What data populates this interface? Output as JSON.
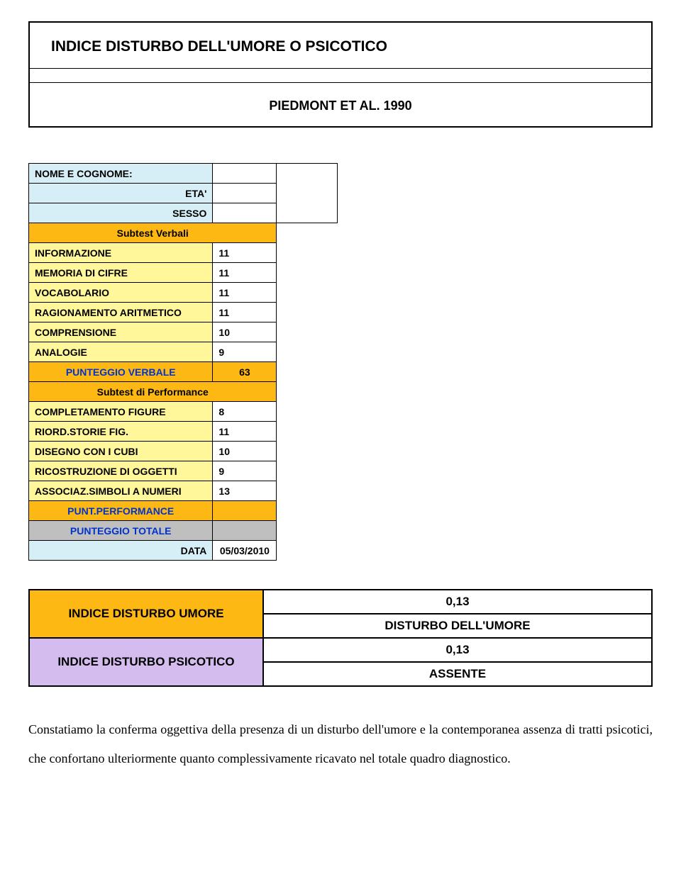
{
  "header": {
    "title": "INDICE DISTURBO DELL'UMORE O PSICOTICO",
    "subtitle": "PIEDMONT ET AL. 1990"
  },
  "fields": {
    "nome_label": "NOME E COGNOME:",
    "eta_label": "ETA'",
    "sesso_label": "SESSO",
    "subtest_verbali": "Subtest Verbali",
    "informazione_label": "INFORMAZIONE",
    "informazione_val": "11",
    "memoria_label": "MEMORIA DI CIFRE",
    "memoria_val": "11",
    "vocabolario_label": "VOCABOLARIO",
    "vocabolario_val": "11",
    "ragionamento_label": "RAGIONAMENTO ARITMETICO",
    "ragionamento_val": "11",
    "comprensione_label": "COMPRENSIONE",
    "comprensione_val": "10",
    "analogie_label": "ANALOGIE",
    "analogie_val": "9",
    "punteggio_verbale_label": "PUNTEGGIO VERBALE",
    "punteggio_verbale_val": "63",
    "subtest_performance": "Subtest di Performance",
    "completamento_label": "COMPLETAMENTO FIGURE",
    "completamento_val": "8",
    "riord_label": "RIORD.STORIE FIG.",
    "riord_val": "11",
    "disegno_label": "DISEGNO CON I CUBI",
    "disegno_val": "10",
    "ricostruzione_label": "RICOSTRUZIONE DI OGGETTI",
    "ricostruzione_val": "9",
    "associaz_label": "ASSOCIAZ.SIMBOLI A NUMERI",
    "associaz_val": "13",
    "punt_performance_label": "PUNT.PERFORMANCE",
    "punteggio_totale_label": "PUNTEGGIO TOTALE",
    "data_label": "DATA",
    "data_val": "05/03/2010"
  },
  "results": {
    "umore_label": "INDICE DISTURBO UMORE",
    "umore_val": "0,13",
    "umore_desc": "DISTURBO DELL'UMORE",
    "psicotico_label": "INDICE DISTURBO PSICOTICO",
    "psicotico_val": "0,13",
    "psicotico_desc": "ASSENTE"
  },
  "footer": {
    "text": "Constatiamo la conferma oggettiva della presenza di un disturbo dell'umore e la contemporanea assenza di tratti psicotici, che confortano ulteriormente quanto complessivamente ricavato nel totale quadro diagnostico."
  },
  "colors": {
    "blue_bg": "#d6eef5",
    "orange_bg": "#fdb813",
    "yellow_bg": "#fff799",
    "grey_bg": "#bfbfbf",
    "purple_bg": "#d4bdee",
    "blue_text": "#0033cc"
  }
}
